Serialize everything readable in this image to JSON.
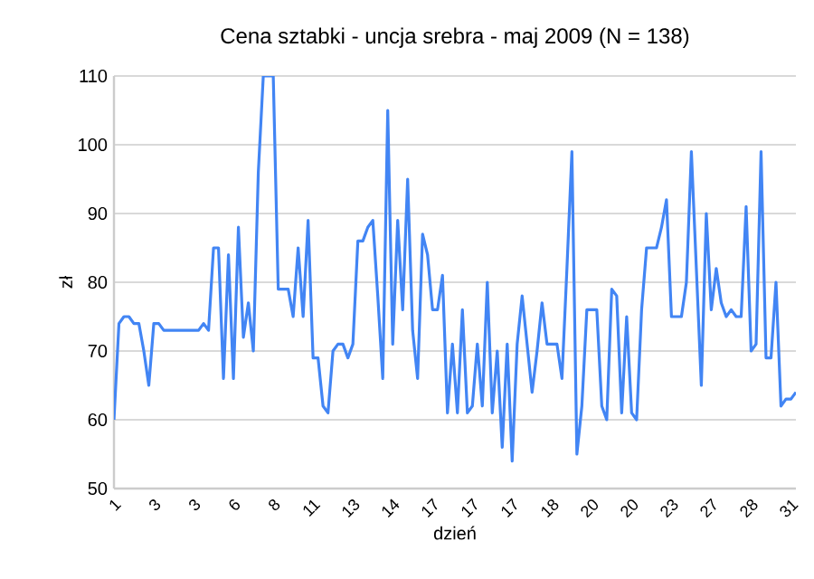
{
  "chart_data": {
    "type": "line",
    "title": "Cena sztabki - uncja srebra - maj 2009 (N = 138)",
    "xlabel": "dzień",
    "ylabel": "zł",
    "categories": [
      "1",
      null,
      null,
      null,
      null,
      null,
      null,
      null,
      "3",
      null,
      null,
      null,
      null,
      null,
      null,
      null,
      "3",
      null,
      null,
      null,
      null,
      null,
      null,
      null,
      "6",
      null,
      null,
      null,
      null,
      null,
      null,
      null,
      "8",
      null,
      null,
      null,
      null,
      null,
      null,
      null,
      "11",
      null,
      null,
      null,
      null,
      null,
      null,
      null,
      "13",
      null,
      null,
      null,
      null,
      null,
      null,
      null,
      "14",
      null,
      null,
      null,
      null,
      null,
      null,
      null,
      "17",
      null,
      null,
      null,
      null,
      null,
      null,
      null,
      "17",
      null,
      null,
      null,
      null,
      null,
      null,
      null,
      "17",
      null,
      null,
      null,
      null,
      null,
      null,
      null,
      "18",
      null,
      null,
      null,
      null,
      null,
      null,
      null,
      "20",
      null,
      null,
      null,
      null,
      null,
      null,
      null,
      "20",
      null,
      null,
      null,
      null,
      null,
      null,
      null,
      "23",
      null,
      null,
      null,
      null,
      null,
      null,
      null,
      "27",
      null,
      null,
      null,
      null,
      null,
      null,
      null,
      "28",
      null,
      null,
      null,
      null,
      null,
      null,
      null,
      "31",
      null
    ],
    "values": [
      60,
      74,
      75,
      75,
      74,
      74,
      70,
      65,
      74,
      74,
      73,
      73,
      73,
      73,
      73,
      73,
      73,
      73,
      74,
      73,
      85,
      85,
      66,
      84,
      66,
      88,
      72,
      77,
      70,
      96,
      110,
      110,
      110,
      79,
      79,
      79,
      75,
      85,
      75,
      89,
      69,
      69,
      62,
      61,
      70,
      71,
      71,
      69,
      71,
      86,
      86,
      88,
      89,
      78,
      66,
      105,
      71,
      89,
      76,
      95,
      73,
      66,
      87,
      84,
      76,
      76,
      81,
      61,
      71,
      61,
      76,
      61,
      62,
      71,
      62,
      80,
      61,
      70,
      56,
      71,
      54,
      71,
      78,
      71,
      64,
      70,
      77,
      71,
      71,
      71,
      66,
      82,
      99,
      55,
      62,
      76,
      76,
      76,
      62,
      60,
      79,
      78,
      61,
      75,
      61,
      60,
      76,
      85,
      85,
      85,
      88,
      92,
      75,
      75,
      75,
      80,
      99,
      82,
      65,
      90,
      76,
      82,
      77,
      75,
      76,
      75,
      75,
      91,
      70,
      71,
      99,
      69,
      69,
      80,
      62,
      63,
      63,
      64
    ],
    "color": "#4285f4",
    "marker": "none",
    "line_style": "solid",
    "grid": "y",
    "ylim": [
      50,
      110
    ],
    "yticks": [
      50,
      60,
      70,
      80,
      90,
      100,
      110
    ]
  }
}
